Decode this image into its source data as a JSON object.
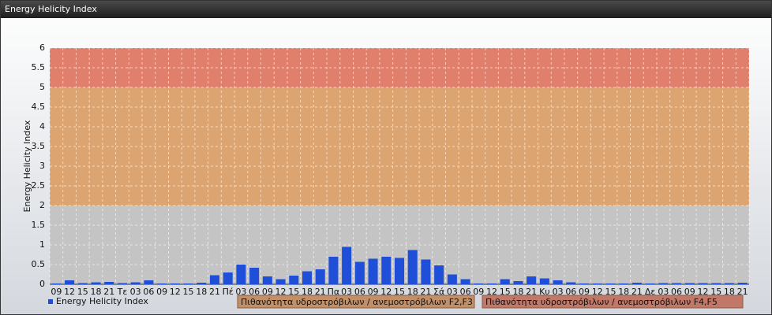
{
  "header": {
    "title": "Energy Helicity Index"
  },
  "chart_data": {
    "type": "bar",
    "y_label": "Energy Helicity Index",
    "categories": [
      "09",
      "12",
      "15",
      "18",
      "21",
      "Τε",
      "03",
      "06",
      "09",
      "12",
      "15",
      "18",
      "21",
      "Πέ",
      "03",
      "06",
      "09",
      "12",
      "15",
      "18",
      "21",
      "Πα",
      "03",
      "06",
      "09",
      "12",
      "15",
      "18",
      "21",
      "Σά",
      "03",
      "06",
      "09",
      "12",
      "15",
      "18",
      "21",
      "Κυ",
      "03",
      "06",
      "09",
      "12",
      "15",
      "18",
      "21",
      "Δε",
      "03",
      "06",
      "09",
      "12",
      "15",
      "18",
      "21"
    ],
    "series": [
      {
        "name": "Energy Helicity Index",
        "color": "#1f4fd8",
        "values": [
          0.02,
          0.1,
          0.03,
          0.05,
          0.06,
          0.03,
          0.05,
          0.1,
          0.02,
          0.02,
          0.02,
          0.04,
          0.23,
          0.3,
          0.5,
          0.42,
          0.2,
          0.13,
          0.22,
          0.33,
          0.38,
          0.7,
          0.95,
          0.57,
          0.65,
          0.7,
          0.67,
          0.87,
          0.63,
          0.48,
          0.25,
          0.13,
          0.02,
          0.02,
          0.13,
          0.08,
          0.2,
          0.15,
          0.1,
          0.05,
          0.02,
          0.02,
          0.02,
          0.02,
          0.04,
          0.02,
          0.03,
          0.03,
          0.03,
          0.03,
          0.03,
          0.03,
          0.04
        ]
      }
    ],
    "bands": [
      {
        "from": 0,
        "to": 2,
        "color": "#c4c4c4"
      },
      {
        "from": 2,
        "to": 5,
        "color": "#dca470",
        "label": "Πιθανότητα υδροστρόβιλων / ανεμοστρόβιλων F2,F3",
        "legend_color": "#c29068"
      },
      {
        "from": 5,
        "to": 6,
        "color": "#e0806c",
        "label": "Πιθανότητα υδροστρόβιλων / ανεμοστρόβιλων F4,F5",
        "legend_color": "#c27868"
      }
    ],
    "ylim": [
      0,
      6
    ],
    "yticks": [
      0,
      0.5,
      1,
      1.5,
      2,
      2.5,
      3,
      3.5,
      4,
      4.5,
      5,
      5.5,
      6
    ],
    "grid": true
  }
}
